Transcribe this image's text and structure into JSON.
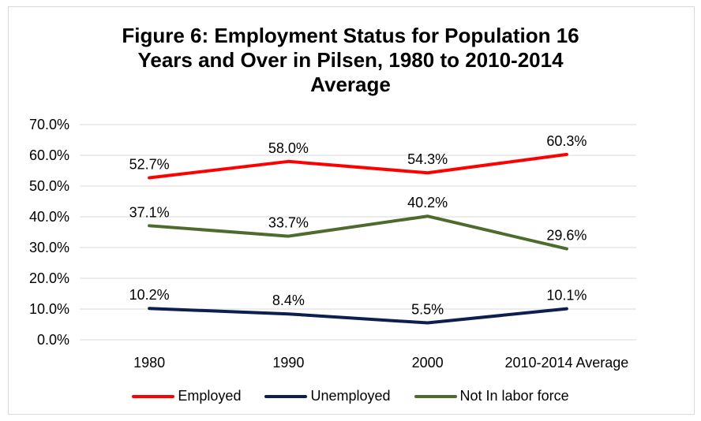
{
  "chart_data": {
    "type": "line",
    "title_lines": [
      "Figure 6: Employment Status for Population 16",
      "Years and Over in Pilsen, 1980 to 2010-2014",
      "Average"
    ],
    "categories": [
      "1980",
      "1990",
      "2000",
      "2010-2014 Average"
    ],
    "ylim": [
      0,
      70
    ],
    "yticks": [
      "0.0%",
      "10.0%",
      "20.0%",
      "30.0%",
      "40.0%",
      "50.0%",
      "60.0%",
      "70.0%"
    ],
    "grid": true,
    "legend_position": "bottom",
    "series": [
      {
        "name": "Employed",
        "color": "#ff0000",
        "values": [
          52.7,
          58.0,
          54.3,
          60.3
        ],
        "labels": [
          "52.7%",
          "58.0%",
          "54.3%",
          "60.3%"
        ]
      },
      {
        "name": "Unemployed",
        "color": "#0d1f4f",
        "values": [
          10.2,
          8.4,
          5.5,
          10.1
        ],
        "labels": [
          "10.2%",
          "8.4%",
          "5.5%",
          "10.1%"
        ]
      },
      {
        "name": "Not In labor force",
        "color": "#4e6b2e",
        "values": [
          37.1,
          33.7,
          40.2,
          29.6
        ],
        "labels": [
          "37.1%",
          "33.7%",
          "40.2%",
          "29.6%"
        ]
      }
    ]
  }
}
